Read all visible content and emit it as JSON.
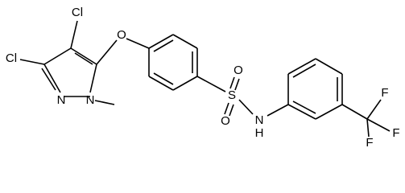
{
  "atoms": [
    {
      "label": "Cl"
    },
    {
      "label": "Cl"
    },
    {
      "label": "N"
    },
    {
      "label": "N"
    },
    {
      "label": "O"
    },
    {
      "label": "S"
    },
    {
      "label": "O"
    },
    {
      "label": "O"
    },
    {
      "label": "N"
    },
    {
      "label": "H"
    },
    {
      "label": "F"
    },
    {
      "label": "F"
    },
    {
      "label": "F"
    }
  ]
}
